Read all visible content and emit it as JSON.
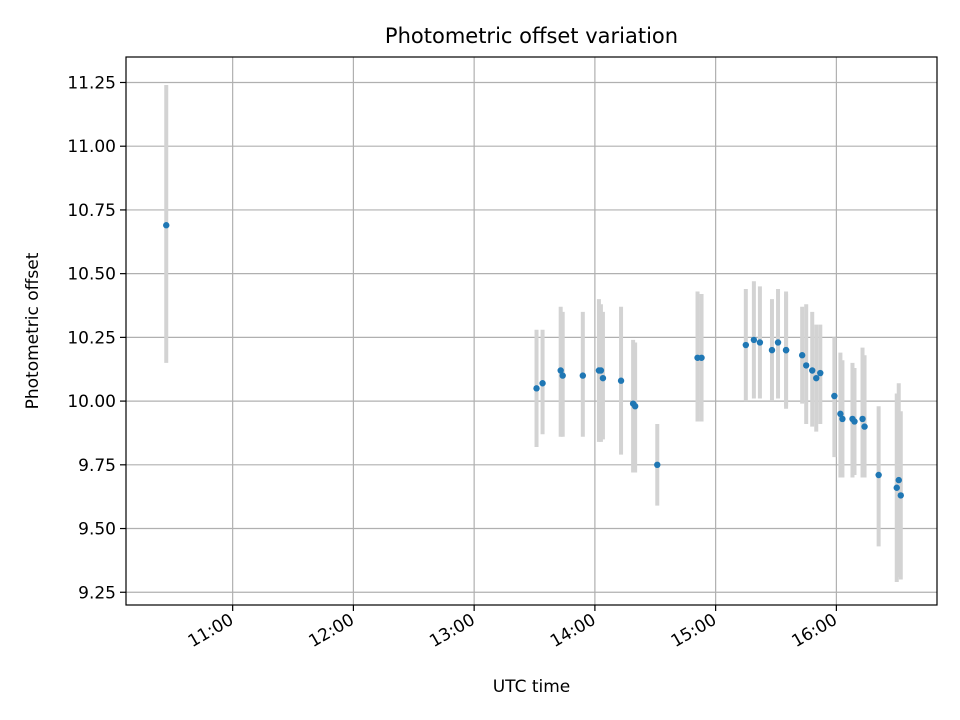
{
  "chart_data": {
    "type": "scatter",
    "title": "Photometric offset variation",
    "xlabel": "UTC time",
    "ylabel": "Photometric offset",
    "x_axis": "time",
    "xlim": [
      "10:07",
      "16:50"
    ],
    "ylim": [
      9.2,
      11.35
    ],
    "grid": true,
    "x_ticks": [
      "11:00",
      "12:00",
      "13:00",
      "14:00",
      "15:00",
      "16:00"
    ],
    "y_ticks": [
      9.25,
      9.5,
      9.75,
      10.0,
      10.25,
      10.5,
      10.75,
      11.0,
      11.25
    ],
    "y_tick_labels": [
      "9.25",
      "9.50",
      "9.75",
      "10.00",
      "10.25",
      "10.50",
      "10.75",
      "11.00",
      "11.25"
    ],
    "point_color": "#1f77b4",
    "errorbar_color": "#d3d3d3",
    "points": [
      {
        "x": "10:27",
        "y": 10.69,
        "low": 10.15,
        "high": 11.24
      },
      {
        "x": "13:31",
        "y": 10.05,
        "low": 9.82,
        "high": 10.28
      },
      {
        "x": "13:34",
        "y": 10.07,
        "low": 9.87,
        "high": 10.28
      },
      {
        "x": "13:43",
        "y": 10.12,
        "low": 9.86,
        "high": 10.37
      },
      {
        "x": "13:44",
        "y": 10.1,
        "low": 9.86,
        "high": 10.35
      },
      {
        "x": "13:54",
        "y": 10.1,
        "low": 9.86,
        "high": 10.35
      },
      {
        "x": "14:02",
        "y": 10.12,
        "low": 9.84,
        "high": 10.4
      },
      {
        "x": "14:03",
        "y": 10.12,
        "low": 9.84,
        "high": 10.38
      },
      {
        "x": "14:04",
        "y": 10.09,
        "low": 9.85,
        "high": 10.35
      },
      {
        "x": "14:13",
        "y": 10.08,
        "low": 9.79,
        "high": 10.37
      },
      {
        "x": "14:19",
        "y": 9.99,
        "low": 9.72,
        "high": 10.24
      },
      {
        "x": "14:20",
        "y": 9.98,
        "low": 9.72,
        "high": 10.23
      },
      {
        "x": "14:31",
        "y": 9.75,
        "low": 9.59,
        "high": 9.91
      },
      {
        "x": "14:51",
        "y": 10.17,
        "low": 9.92,
        "high": 10.43
      },
      {
        "x": "14:53",
        "y": 10.17,
        "low": 9.92,
        "high": 10.42
      },
      {
        "x": "15:15",
        "y": 10.22,
        "low": 10.0,
        "high": 10.44
      },
      {
        "x": "15:19",
        "y": 10.24,
        "low": 10.01,
        "high": 10.47
      },
      {
        "x": "15:22",
        "y": 10.23,
        "low": 10.01,
        "high": 10.45
      },
      {
        "x": "15:28",
        "y": 10.2,
        "low": 10.0,
        "high": 10.4
      },
      {
        "x": "15:31",
        "y": 10.23,
        "low": 10.01,
        "high": 10.44
      },
      {
        "x": "15:35",
        "y": 10.2,
        "low": 9.98,
        "high": 10.43
      },
      {
        "x": "15:35",
        "y": 10.2,
        "low": 9.97,
        "high": 10.42
      },
      {
        "x": "15:43",
        "y": 10.18,
        "low": 9.99,
        "high": 10.37
      },
      {
        "x": "15:45",
        "y": 10.14,
        "low": 9.91,
        "high": 10.38
      },
      {
        "x": "15:48",
        "y": 10.12,
        "low": 9.9,
        "high": 10.35
      },
      {
        "x": "15:50",
        "y": 10.09,
        "low": 9.88,
        "high": 10.3
      },
      {
        "x": "15:52",
        "y": 10.11,
        "low": 9.91,
        "high": 10.3
      },
      {
        "x": "15:59",
        "y": 10.02,
        "low": 9.78,
        "high": 10.25
      },
      {
        "x": "16:02",
        "y": 9.95,
        "low": 9.7,
        "high": 10.19
      },
      {
        "x": "16:03",
        "y": 9.93,
        "low": 9.7,
        "high": 10.16
      },
      {
        "x": "16:08",
        "y": 9.93,
        "low": 9.7,
        "high": 10.15
      },
      {
        "x": "16:09",
        "y": 9.92,
        "low": 9.71,
        "high": 10.13
      },
      {
        "x": "16:13",
        "y": 9.93,
        "low": 9.7,
        "high": 10.21
      },
      {
        "x": "16:14",
        "y": 9.9,
        "low": 9.7,
        "high": 10.18
      },
      {
        "x": "16:21",
        "y": 9.71,
        "low": 9.43,
        "high": 9.98
      },
      {
        "x": "16:30",
        "y": 9.66,
        "low": 9.29,
        "high": 10.03
      },
      {
        "x": "16:31",
        "y": 9.69,
        "low": 9.31,
        "high": 10.07
      },
      {
        "x": "16:32",
        "y": 9.63,
        "low": 9.3,
        "high": 9.96
      }
    ]
  }
}
